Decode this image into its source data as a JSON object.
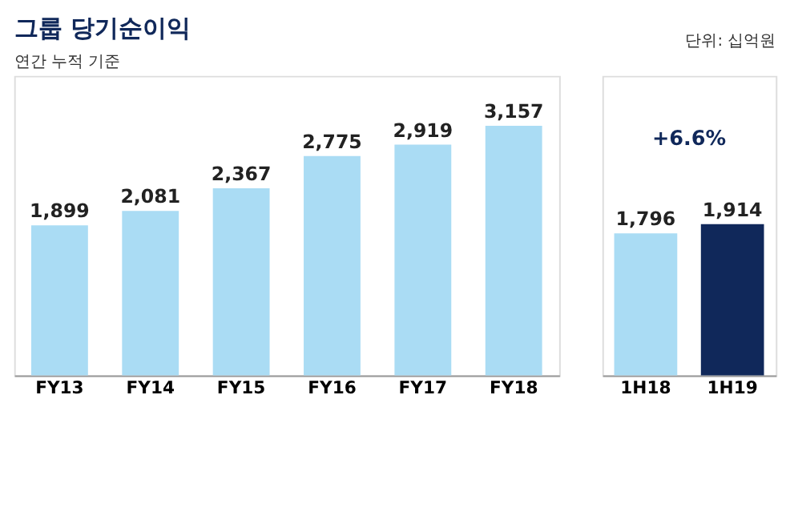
{
  "chart_data": [
    {
      "type": "bar",
      "title": "그룹 당기순이익",
      "subtitle": "연간 누적 기준",
      "categories": [
        "FY13",
        "FY14",
        "FY15",
        "FY16",
        "FY17",
        "FY18"
      ],
      "values": [
        1899,
        2081,
        2367,
        2775,
        2919,
        3157
      ],
      "value_labels": [
        "1,899",
        "2,081",
        "2,367",
        "2,775",
        "2,919",
        "3,157"
      ],
      "color": "#aadcf4"
    },
    {
      "type": "bar",
      "categories": [
        "1H18",
        "1H19"
      ],
      "values": [
        1796,
        1914
      ],
      "value_labels": [
        "1,796",
        "1,914"
      ],
      "colors": [
        "#aadcf4",
        "#10285a"
      ],
      "annotations": [
        "단위: 십억원",
        "+6.6%"
      ]
    }
  ]
}
